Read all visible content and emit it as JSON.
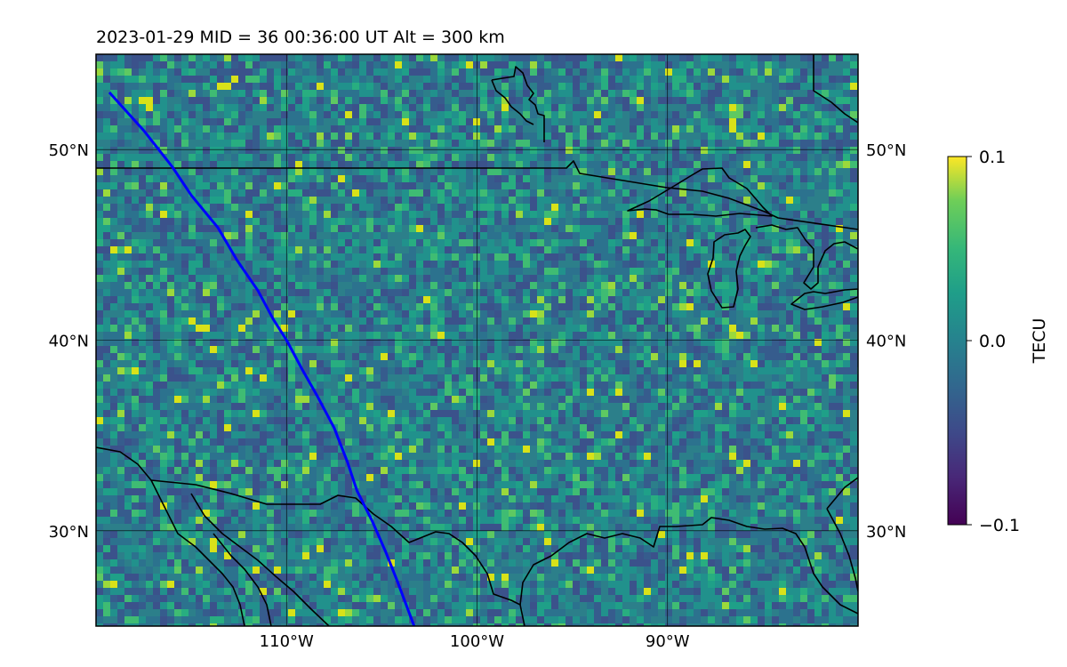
{
  "figure": {
    "title": "2023-01-29  MID =  36    00:36:00  UT  Alt = 300 km"
  },
  "map": {
    "lon_range": [
      -120,
      -80
    ],
    "lat_range": [
      25,
      55
    ],
    "lat_ticks": [
      {
        "value": 30,
        "label": "30°N"
      },
      {
        "value": 40,
        "label": "40°N"
      },
      {
        "value": 50,
        "label": "50°N"
      }
    ],
    "lon_ticks": [
      {
        "value": -110,
        "label": "110°W"
      },
      {
        "value": -100,
        "label": "100°W"
      },
      {
        "value": -90,
        "label": "90°W"
      }
    ],
    "gridlines": true,
    "colormap": "viridis",
    "background_color": "#2c7f8a",
    "track_color": "#0000ff",
    "coast_color": "#000000",
    "track": [
      [
        -119.3,
        53
      ],
      [
        -117.5,
        51
      ],
      [
        -116,
        49.1
      ],
      [
        -115,
        47.6
      ],
      [
        -113.6,
        45.9
      ],
      [
        -112.6,
        44.2
      ],
      [
        -111.5,
        42.6
      ],
      [
        -110.7,
        41.1
      ],
      [
        -110,
        40
      ],
      [
        -109.2,
        38.5
      ],
      [
        -108.4,
        37.1
      ],
      [
        -107.5,
        35.4
      ],
      [
        -106.8,
        33.6
      ],
      [
        -106.3,
        32.1
      ],
      [
        -105.5,
        30.5
      ],
      [
        -104.8,
        28.9
      ],
      [
        -104.2,
        27.4
      ],
      [
        -103.3,
        25
      ]
    ]
  },
  "colorbar": {
    "label": "TECU",
    "min": -0.1,
    "max": 0.1,
    "ticks": [
      {
        "value": 0.1,
        "label": "0.1"
      },
      {
        "value": 0.0,
        "label": "0.0"
      },
      {
        "value": -0.1,
        "label": "−0.1"
      }
    ]
  }
}
